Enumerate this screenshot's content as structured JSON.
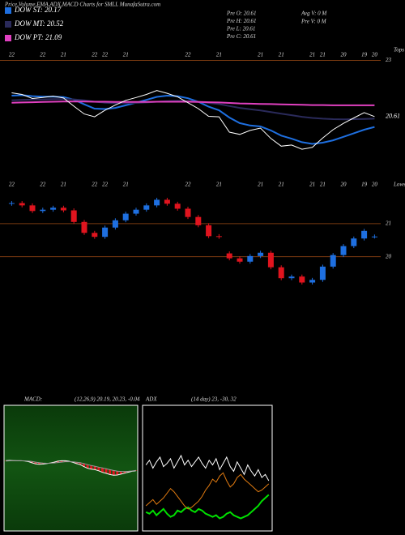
{
  "chart_data": [
    {
      "type": "line",
      "title": "Price,Volume,EMA,ADX,MACD Charts for SMLL MunafaSutra.com",
      "info": [
        "Pre  O: 20.61",
        "Pre  H: 20.61",
        "Pre  L: 20.61",
        "Pre  C: 20.61",
        "Avg V: 0  M",
        "Pre  V: 0  M"
      ],
      "corner_label": "Tops",
      "categories": [
        "22",
        null,
        null,
        "22",
        null,
        "21",
        null,
        null,
        "22",
        "22",
        null,
        "21",
        null,
        null,
        null,
        null,
        null,
        "22",
        null,
        null,
        "21",
        null,
        null,
        null,
        "21",
        null,
        "21",
        null,
        null,
        "21",
        "21",
        null,
        "20",
        null,
        "19",
        "20"
      ],
      "ylim": [
        18.5,
        23.5
      ],
      "yticks": [
        23
      ],
      "last_price": 20.61,
      "series": [
        {
          "name": "DOW ST: 20.17",
          "color": "#1e6fe0",
          "values": [
            21.5,
            21.52,
            21.48,
            21.46,
            21.46,
            21.44,
            21.33,
            21.13,
            20.95,
            20.93,
            20.98,
            21.09,
            21.2,
            21.32,
            21.45,
            21.5,
            21.48,
            21.39,
            21.24,
            21.03,
            20.88,
            20.57,
            20.33,
            20.23,
            20.19,
            20.02,
            19.8,
            19.67,
            19.52,
            19.45,
            19.5,
            19.6,
            19.75,
            19.9,
            20.05,
            20.17
          ]
        },
        {
          "name": "DOW MT: 20.52",
          "color": "#2a2a5a",
          "values": [
            21.3,
            21.32,
            21.33,
            21.34,
            21.35,
            21.36,
            21.34,
            21.3,
            21.24,
            21.2,
            21.18,
            21.18,
            21.19,
            21.21,
            21.24,
            21.27,
            21.28,
            21.27,
            21.24,
            21.19,
            21.14,
            21.06,
            20.98,
            20.92,
            20.87,
            20.8,
            20.73,
            20.67,
            20.6,
            20.55,
            20.52,
            20.5,
            20.49,
            20.5,
            20.51,
            20.52
          ]
        },
        {
          "name": "DOW PT: 21.09",
          "color": "#e040c0",
          "values": [
            21.2,
            21.21,
            21.22,
            21.23,
            21.24,
            21.25,
            21.25,
            21.25,
            21.24,
            21.24,
            21.23,
            21.23,
            21.23,
            21.23,
            21.24,
            21.24,
            21.24,
            21.24,
            21.23,
            21.22,
            21.21,
            21.19,
            21.17,
            21.16,
            21.15,
            21.14,
            21.13,
            21.12,
            21.11,
            21.1,
            21.1,
            21.09,
            21.09,
            21.09,
            21.09,
            21.09
          ]
        }
      ]
    },
    {
      "type": "candlestick",
      "corner_label": "Lows",
      "ylim": [
        16,
        22
      ],
      "yticks": [
        21,
        20
      ],
      "up_color": "#1e6fe0",
      "down_color": "#e0141e",
      "open": [
        21.6,
        21.62,
        21.55,
        21.38,
        21.42,
        21.48,
        21.4,
        21.05,
        20.72,
        20.6,
        20.88,
        21.1,
        21.3,
        21.42,
        21.55,
        21.72,
        21.6,
        21.45,
        21.2,
        20.95,
        20.62,
        20.1,
        19.95,
        19.85,
        20.02,
        20.12,
        19.68,
        19.35,
        19.4,
        19.22,
        19.3,
        19.7,
        20.05,
        20.32,
        20.55,
        20.61
      ],
      "high": [
        21.68,
        21.68,
        21.61,
        21.48,
        21.54,
        21.54,
        21.46,
        21.11,
        20.78,
        20.94,
        21.16,
        21.36,
        21.48,
        21.61,
        21.78,
        21.78,
        21.66,
        21.51,
        21.26,
        21.01,
        20.68,
        20.16,
        20.01,
        20.08,
        20.18,
        20.18,
        19.74,
        19.46,
        19.46,
        19.36,
        19.76,
        20.11,
        20.38,
        20.61,
        20.84,
        20.67
      ],
      "low": [
        21.54,
        21.49,
        21.32,
        21.32,
        21.36,
        21.34,
        20.99,
        20.66,
        20.54,
        20.54,
        20.82,
        21.04,
        21.24,
        21.36,
        21.49,
        21.54,
        21.39,
        21.14,
        20.89,
        20.56,
        20.54,
        19.89,
        19.79,
        19.79,
        19.96,
        19.62,
        19.29,
        19.29,
        19.16,
        19.16,
        19.24,
        19.64,
        19.99,
        20.26,
        20.49,
        20.55
      ],
      "close": [
        21.62,
        21.55,
        21.38,
        21.42,
        21.48,
        21.4,
        21.05,
        20.72,
        20.6,
        20.88,
        21.1,
        21.3,
        21.42,
        21.55,
        21.72,
        21.6,
        21.45,
        21.2,
        20.95,
        20.62,
        20.6,
        19.95,
        19.85,
        20.02,
        20.12,
        19.68,
        19.35,
        19.4,
        19.22,
        19.3,
        19.7,
        20.05,
        20.32,
        20.55,
        20.78,
        20.61
      ]
    },
    {
      "type": "macd",
      "title": "MACD:",
      "subtitle": "(12,26,9) 20.19, 20.23, -0.04",
      "ylim": [
        13,
        28
      ],
      "hist_color": "#e0141e",
      "series": [
        {
          "color": "#ffffff",
          "values": [
            21.4,
            21.42,
            21.4,
            21.38,
            21.38,
            21.36,
            21.28,
            21.14,
            21.0,
            20.96,
            20.98,
            21.04,
            21.12,
            21.22,
            21.33,
            21.38,
            21.38,
            21.32,
            21.2,
            21.04,
            20.92,
            20.68,
            20.48,
            20.38,
            20.32,
            20.18,
            20.0,
            19.88,
            19.74,
            19.66,
            19.68,
            19.78,
            19.9,
            20.02,
            20.12,
            20.19
          ]
        },
        {
          "color": "#9a9a9a",
          "values": [
            21.35,
            21.37,
            21.38,
            21.38,
            21.38,
            21.37,
            21.35,
            21.3,
            21.22,
            21.15,
            21.1,
            21.08,
            21.09,
            21.12,
            21.17,
            21.22,
            21.26,
            21.27,
            21.26,
            21.21,
            21.15,
            21.04,
            20.92,
            20.81,
            20.72,
            20.62,
            20.52,
            20.42,
            20.32,
            20.22,
            20.14,
            20.1,
            20.1,
            20.12,
            20.16,
            20.23
          ]
        }
      ],
      "hist": [
        0.05,
        0.05,
        0.02,
        0,
        0,
        -0.01,
        -0.07,
        -0.16,
        -0.22,
        -0.19,
        -0.12,
        -0.04,
        0.03,
        0.1,
        0.16,
        0.16,
        0.12,
        0.05,
        -0.06,
        -0.17,
        -0.23,
        -0.36,
        -0.44,
        -0.43,
        -0.4,
        -0.44,
        -0.52,
        -0.54,
        -0.58,
        -0.56,
        -0.46,
        -0.32,
        -0.2,
        -0.1,
        -0.04,
        -0.04
      ]
    },
    {
      "type": "adx",
      "title": "ADX",
      "subtitle": "(14 day) 23, -30, 32",
      "ylim": [
        0,
        80
      ],
      "series": [
        {
          "color": "#ffffff",
          "values": [
            42,
            45,
            40,
            44,
            47,
            41,
            43,
            46,
            40,
            44,
            48,
            42,
            45,
            41,
            44,
            47,
            43,
            40,
            45,
            42,
            46,
            39,
            43,
            47,
            41,
            38,
            44,
            40,
            36,
            42,
            38,
            35,
            39,
            34,
            36,
            32
          ]
        },
        {
          "color": "#00e000",
          "values": [
            12,
            11,
            13,
            10,
            12,
            14,
            11,
            9,
            10,
            13,
            12,
            14,
            15,
            13,
            12,
            14,
            13,
            11,
            10,
            9,
            10,
            8,
            9,
            11,
            12,
            10,
            9,
            8,
            9,
            10,
            12,
            14,
            16,
            19,
            21,
            23
          ]
        },
        {
          "color": "#e07a10",
          "values": [
            16,
            18,
            20,
            17,
            19,
            21,
            24,
            27,
            25,
            22,
            19,
            16,
            14,
            15,
            17,
            19,
            22,
            26,
            29,
            33,
            31,
            35,
            37,
            32,
            28,
            30,
            34,
            36,
            33,
            31,
            29,
            27,
            25,
            26,
            28,
            30
          ]
        }
      ]
    }
  ]
}
